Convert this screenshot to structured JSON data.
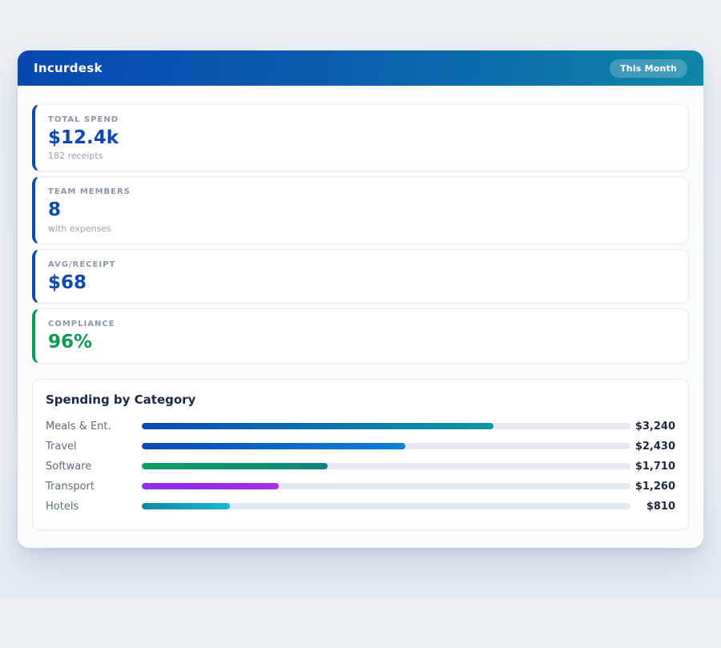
{
  "app": {
    "title": "Incurdesk",
    "period_badge": "This Month"
  },
  "theme": {
    "page_bg": "#edf1f6",
    "header_gradient_from": "#0848b0",
    "header_gradient_to": "#0e86a6",
    "accent_blue": "#0b4ab4",
    "accent_green": "#099a56",
    "bar_track_color": "#e4e9f1"
  },
  "stats": [
    {
      "label": "TOTAL SPEND",
      "value": "$12.4k",
      "sub": "182 receipts",
      "accent": "#0b4ab4",
      "value_color": "#0b4ab4"
    },
    {
      "label": "TEAM MEMBERS",
      "value": "8",
      "sub": "with expenses",
      "accent": "#0b4ab4",
      "value_color": "#0b4ab4"
    },
    {
      "label": "AVG/RECEIPT",
      "value": "$68",
      "sub": "",
      "accent": "#0b4ab4",
      "value_color": "#0b4ab4"
    },
    {
      "label": "COMPLIANCE",
      "value": "96%",
      "sub": "",
      "accent": "#099a56",
      "value_color": "#099a56"
    }
  ],
  "chart": {
    "title": "Spending by Category"
  },
  "chart_data": {
    "type": "bar",
    "orientation": "horizontal",
    "title": "Spending by Category",
    "categories": [
      "Meals & Ent.",
      "Travel",
      "Software",
      "Transport",
      "Hotels"
    ],
    "values": [
      3240,
      2430,
      1710,
      1260,
      810
    ],
    "value_labels": [
      "$3,240",
      "$2,430",
      "$1,710",
      "$1,260",
      "$810"
    ],
    "xlim": [
      0,
      4500
    ],
    "bar_percents": [
      72,
      54,
      38,
      28,
      18
    ],
    "grid": false,
    "legend": "none",
    "bar_gradients": [
      [
        "#0b4ab4",
        "#0f98a2"
      ],
      [
        "#0b4ab4",
        "#0b80d8"
      ],
      [
        "#0aa061",
        "#138379"
      ],
      [
        "#8a2df2",
        "#a62ee6"
      ],
      [
        "#0f86a4",
        "#15b9d3"
      ]
    ]
  }
}
